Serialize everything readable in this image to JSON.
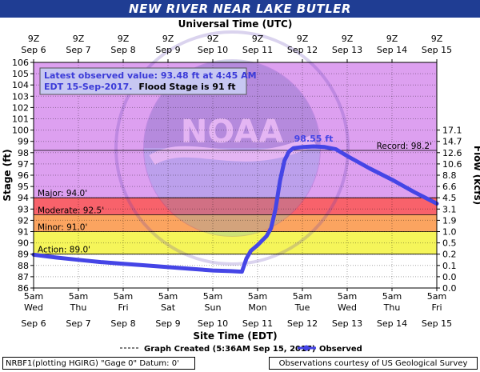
{
  "title": "NEW RIVER NEAR LAKE BUTLER",
  "footer": {
    "left": "NRBF1(plotting HGIRG) \"Gage 0\" Datum: 0'",
    "right": "Observations courtesy of US Geological Survey"
  },
  "colors": {
    "header": "#1f3d93",
    "record_zone": "#dda0f0",
    "major_zone": "#f8626b",
    "moderate_zone": "#fba460",
    "minor_zone": "#f5f55a",
    "action_zone": "#ffff99",
    "series": "#4545e6",
    "info_box": "#c7c7f2"
  },
  "chart_data": {
    "type": "line",
    "title": "",
    "xlabel_top": "Universal Time (UTC)",
    "xlabel": "Site Time (EDT)",
    "ylabel": "Stage (ft)",
    "y2label": "Flow (kcfs)",
    "ylim": [
      86,
      106
    ],
    "yticks": [
      86,
      87,
      88,
      89,
      90,
      91,
      92,
      93,
      94,
      95,
      96,
      97,
      98,
      99,
      100,
      101,
      102,
      103,
      104,
      105,
      106
    ],
    "y2ticks": [
      {
        "stage": 86,
        "label": "0.0"
      },
      {
        "stage": 87,
        "label": "0.0"
      },
      {
        "stage": 88,
        "label": "0.1"
      },
      {
        "stage": 89,
        "label": "0.2"
      },
      {
        "stage": 90,
        "label": "0.5"
      },
      {
        "stage": 91,
        "label": "1.0"
      },
      {
        "stage": 92,
        "label": "1.9"
      },
      {
        "stage": 93,
        "label": "3.1"
      },
      {
        "stage": 94,
        "label": "4.5"
      },
      {
        "stage": 95,
        "label": "6.6"
      },
      {
        "stage": 96,
        "label": "8.8"
      },
      {
        "stage": 97,
        "label": "10.6"
      },
      {
        "stage": 98,
        "label": "12.6"
      },
      {
        "stage": 99,
        "label": "14.7"
      },
      {
        "stage": 100,
        "label": "17.1"
      }
    ],
    "xlim": [
      "2017-09-06 05:00 EDT",
      "2017-09-15 05:00 EDT"
    ],
    "x_ticks_top": [
      {
        "day": 0,
        "hour": "9Z",
        "date": "Sep 6"
      },
      {
        "day": 1,
        "hour": "9Z",
        "date": "Sep 7"
      },
      {
        "day": 2,
        "hour": "9Z",
        "date": "Sep 8"
      },
      {
        "day": 3,
        "hour": "9Z",
        "date": "Sep 9"
      },
      {
        "day": 4,
        "hour": "9Z",
        "date": "Sep 10"
      },
      {
        "day": 5,
        "hour": "9Z",
        "date": "Sep 11"
      },
      {
        "day": 6,
        "hour": "9Z",
        "date": "Sep 12"
      },
      {
        "day": 7,
        "hour": "9Z",
        "date": "Sep 13"
      },
      {
        "day": 8,
        "hour": "9Z",
        "date": "Sep 14"
      },
      {
        "day": 9,
        "hour": "9Z",
        "date": "Sep 15"
      }
    ],
    "x_ticks_bottom": [
      {
        "day": 0,
        "time": "5am",
        "weekday": "Wed",
        "date": "Sep 6"
      },
      {
        "day": 1,
        "time": "5am",
        "weekday": "Thu",
        "date": "Sep 7"
      },
      {
        "day": 2,
        "time": "5am",
        "weekday": "Fri",
        "date": "Sep 8"
      },
      {
        "day": 3,
        "time": "5am",
        "weekday": "Sat",
        "date": "Sep 9"
      },
      {
        "day": 4,
        "time": "5am",
        "weekday": "Sun",
        "date": "Sep 10"
      },
      {
        "day": 5,
        "time": "5am",
        "weekday": "Mon",
        "date": "Sep 11"
      },
      {
        "day": 6,
        "time": "5am",
        "weekday": "Tue",
        "date": "Sep 12"
      },
      {
        "day": 7,
        "time": "5am",
        "weekday": "Wed",
        "date": "Sep 13"
      },
      {
        "day": 8,
        "time": "5am",
        "weekday": "Thu",
        "date": "Sep 14"
      },
      {
        "day": 9,
        "time": "5am",
        "weekday": "Fri",
        "date": "Sep 15"
      }
    ],
    "flood_zones": [
      {
        "name": "Record",
        "from": 98.2,
        "to": 106,
        "color_key": "record_zone"
      },
      {
        "name": "Major",
        "from": 94.0,
        "to": 98.2,
        "color_key": "record_zone"
      },
      {
        "name": "Major",
        "from": 92.5,
        "to": 94.0,
        "color_key": "major_zone"
      },
      {
        "name": "Moderate",
        "from": 91.0,
        "to": 92.5,
        "color_key": "moderate_zone"
      },
      {
        "name": "Minor",
        "from": 89.0,
        "to": 91.0,
        "color_key": "minor_zone"
      }
    ],
    "threshold_lines": [
      {
        "label": "Record: 98.2'",
        "value": 98.2,
        "side": "right"
      },
      {
        "label": "Major: 94.0'",
        "value": 94.0,
        "side": "left"
      },
      {
        "label": "Moderate: 92.5'",
        "value": 92.5,
        "side": "left"
      },
      {
        "label": "Minor: 91.0'",
        "value": 91.0,
        "side": "left"
      },
      {
        "label": "Action: 89.0'",
        "value": 89.0,
        "side": "left"
      }
    ],
    "series": [
      {
        "name": "Observed",
        "points": [
          {
            "day": 0.0,
            "stage": 88.95
          },
          {
            "day": 0.5,
            "stage": 88.7
          },
          {
            "day": 1.0,
            "stage": 88.5
          },
          {
            "day": 1.5,
            "stage": 88.3
          },
          {
            "day": 2.0,
            "stage": 88.15
          },
          {
            "day": 2.5,
            "stage": 88.0
          },
          {
            "day": 3.0,
            "stage": 87.85
          },
          {
            "day": 3.5,
            "stage": 87.7
          },
          {
            "day": 4.0,
            "stage": 87.55
          },
          {
            "day": 4.4,
            "stage": 87.5
          },
          {
            "day": 4.65,
            "stage": 87.45
          },
          {
            "day": 4.75,
            "stage": 88.6
          },
          {
            "day": 4.85,
            "stage": 89.3
          },
          {
            "day": 5.0,
            "stage": 89.8
          },
          {
            "day": 5.2,
            "stage": 90.6
          },
          {
            "day": 5.3,
            "stage": 91.3
          },
          {
            "day": 5.4,
            "stage": 93.0
          },
          {
            "day": 5.5,
            "stage": 95.5
          },
          {
            "day": 5.6,
            "stage": 97.3
          },
          {
            "day": 5.7,
            "stage": 98.1
          },
          {
            "day": 5.8,
            "stage": 98.4
          },
          {
            "day": 6.0,
            "stage": 98.5
          },
          {
            "day": 6.25,
            "stage": 98.55
          },
          {
            "day": 6.5,
            "stage": 98.5
          },
          {
            "day": 6.75,
            "stage": 98.3
          },
          {
            "day": 7.0,
            "stage": 97.7
          },
          {
            "day": 7.5,
            "stage": 96.6
          },
          {
            "day": 8.0,
            "stage": 95.6
          },
          {
            "day": 8.5,
            "stage": 94.5
          },
          {
            "day": 9.0,
            "stage": 93.48
          }
        ]
      }
    ],
    "annotations": {
      "peak_label": "98.55 ft",
      "peak_day": 6.25,
      "peak_stage": 98.55
    },
    "info_box": {
      "line1": "Latest observed value: 93.48 ft at 4:45 AM",
      "line2_a": "EDT 15-Sep-2017.",
      "line2_b": "Flood Stage is 91 ft"
    },
    "legend": {
      "graph_created": "Graph Created (5:36AM Sep 15, 2017)",
      "observed": "Observed"
    },
    "watermark": "NOAA"
  }
}
